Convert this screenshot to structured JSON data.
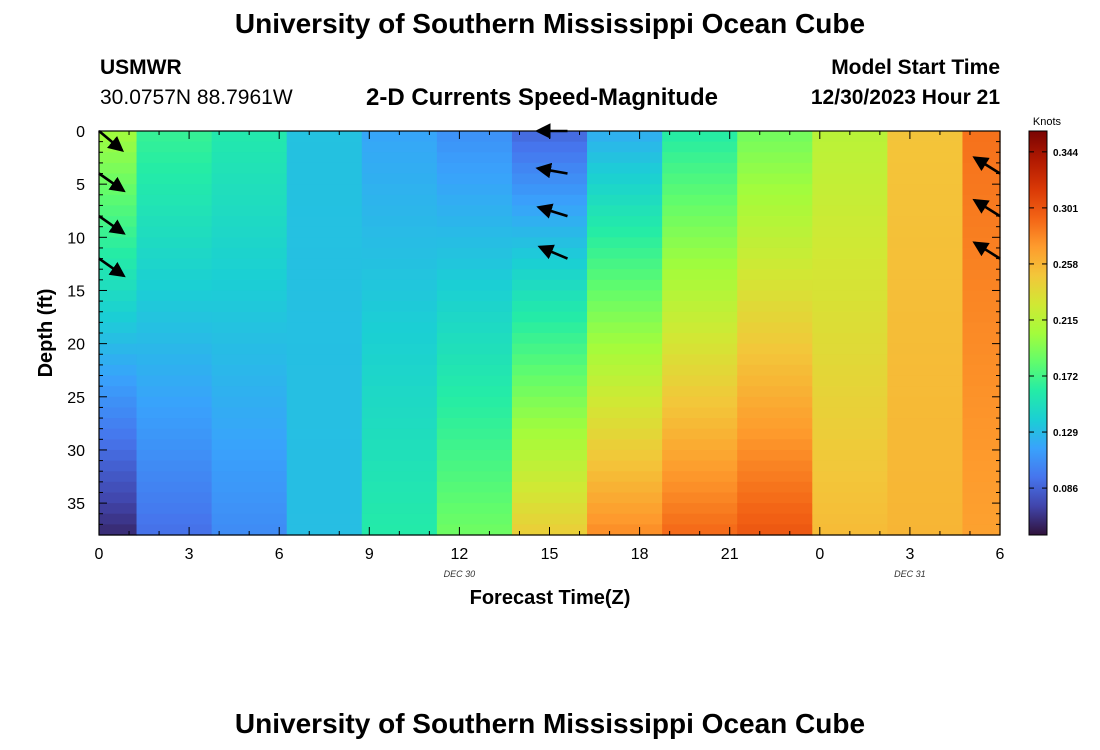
{
  "header": {
    "title": "University of Southern Mississippi Ocean Cube",
    "station_name": "USMWR",
    "station_coords": "30.0757N  88.7961W",
    "plot_title": "2-D Currents Speed-Magnitude",
    "model_label": "Model Start Time",
    "model_time": "12/30/2023 Hour 21"
  },
  "footer": {
    "title": "University of Southern Mississippi Ocean Cube"
  },
  "chart_data": {
    "type": "heatmap",
    "title": "2-D Currents Speed-Magnitude",
    "xlabel": "Forecast Time(Z)",
    "ylabel": "Depth (ft)",
    "x_tick_labels": [
      "0",
      "3",
      "6",
      "9",
      "12",
      "15",
      "18",
      "21",
      "0",
      "3",
      "6"
    ],
    "x_tick_hours": [
      0,
      3,
      6,
      9,
      12,
      15,
      18,
      21,
      24,
      27,
      30
    ],
    "date_labels": [
      {
        "label": "DEC  30",
        "hour": 12
      },
      {
        "label": "DEC  31",
        "hour": 27
      }
    ],
    "xlim": [
      0,
      30
    ],
    "ylim": [
      38,
      0
    ],
    "y_ticks": [
      0,
      5,
      10,
      15,
      20,
      25,
      30,
      35
    ],
    "column_hours": [
      0,
      2.5,
      5,
      7.5,
      10,
      12.5,
      15,
      17.5,
      20,
      22.5,
      25,
      27.5,
      30
    ],
    "depth_min": 0,
    "depth_max": 38,
    "depth_bins": 38,
    "column_profiles": [
      {
        "hour": 0,
        "surface": 0.205,
        "bottom": 0.06
      },
      {
        "hour": 2.5,
        "surface": 0.168,
        "bottom": 0.092
      },
      {
        "hour": 5,
        "surface": 0.158,
        "bottom": 0.105
      },
      {
        "hour": 7.5,
        "surface": 0.132,
        "bottom": 0.13
      },
      {
        "hour": 10,
        "surface": 0.118,
        "bottom": 0.16
      },
      {
        "hour": 12.5,
        "surface": 0.108,
        "bottom": 0.188
      },
      {
        "hour": 15,
        "surface": 0.088,
        "bottom": 0.245
      },
      {
        "hour": 17.5,
        "surface": 0.122,
        "bottom": 0.278
      },
      {
        "hour": 20,
        "surface": 0.16,
        "bottom": 0.292
      },
      {
        "hour": 22.5,
        "surface": 0.188,
        "bottom": 0.3
      },
      {
        "hour": 25,
        "surface": 0.215,
        "bottom": 0.255
      },
      {
        "hour": 27.5,
        "surface": 0.25,
        "bottom": 0.258
      },
      {
        "hour": 30,
        "surface": 0.288,
        "bottom": 0.268
      }
    ],
    "vectors": [
      {
        "hour": 0,
        "depth": 0,
        "angle_deg": 40
      },
      {
        "hour": 0,
        "depth": 4,
        "angle_deg": 35
      },
      {
        "hour": 0,
        "depth": 8,
        "angle_deg": 35
      },
      {
        "hour": 0,
        "depth": 12,
        "angle_deg": 35
      },
      {
        "hour": 15,
        "depth": 0,
        "angle_deg": 180
      },
      {
        "hour": 15,
        "depth": 4,
        "angle_deg": 190
      },
      {
        "hour": 15,
        "depth": 8,
        "angle_deg": 197
      },
      {
        "hour": 15,
        "depth": 12,
        "angle_deg": 203
      },
      {
        "hour": 30,
        "depth": 4,
        "angle_deg": 212
      },
      {
        "hour": 30,
        "depth": 8,
        "angle_deg": 212
      },
      {
        "hour": 30,
        "depth": 12,
        "angle_deg": 212
      }
    ],
    "colorbar": {
      "unit_label": "Knots",
      "min": 0.05,
      "max": 0.36,
      "tick_values": [
        0.344,
        0.301,
        0.258,
        0.215,
        0.172,
        0.129,
        0.086
      ],
      "tick_labels": [
        "0.344",
        "0.301",
        "0.258",
        "0.215",
        "0.172",
        "0.129",
        "0.086"
      ],
      "stops": [
        "#30123b",
        "#4145ab",
        "#4675ed",
        "#39a2fc",
        "#1bcfd4",
        "#24eca6",
        "#61fc6c",
        "#a4fc3b",
        "#d1e834",
        "#f3c63a",
        "#fe9b2d",
        "#f36315",
        "#d93806",
        "#b11901",
        "#7a0403"
      ]
    }
  }
}
